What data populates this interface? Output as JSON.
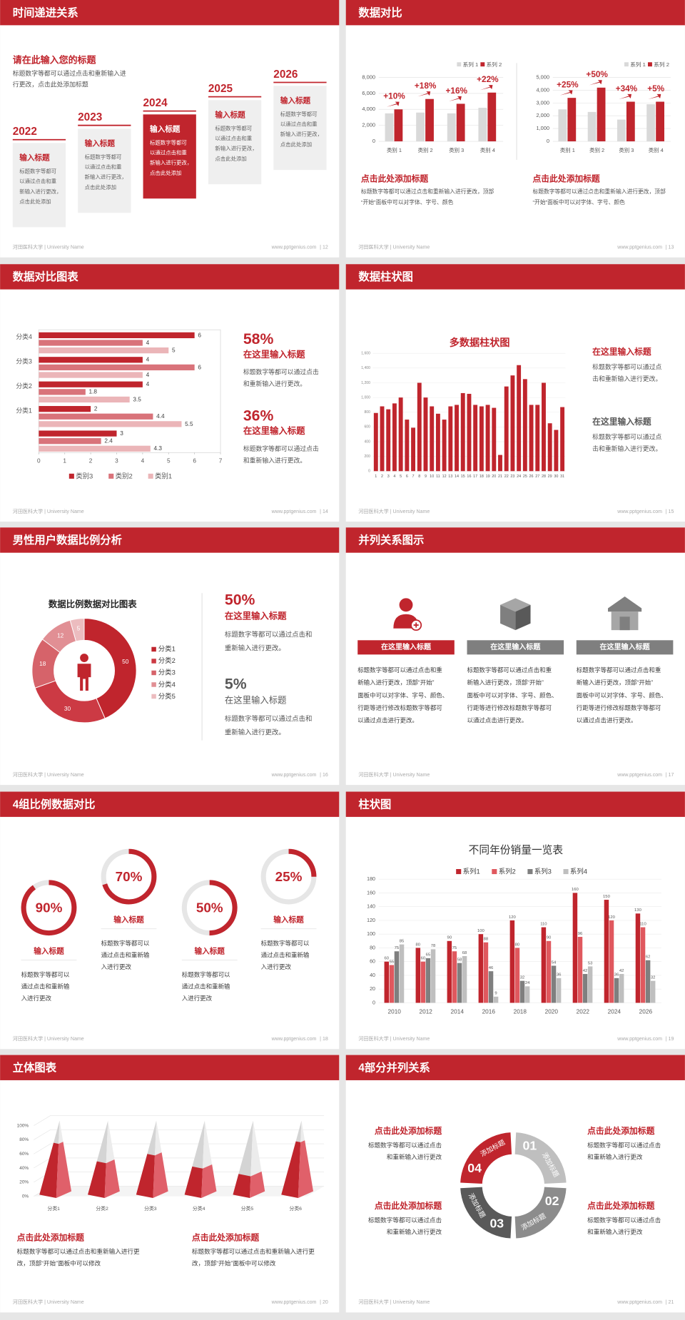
{
  "footer": {
    "school": "河田医科大学 | University Name",
    "site": "www.pptgenius.com"
  },
  "slides": [
    {
      "title": "时间递进关系",
      "page": "| 12",
      "heading": "请在此输入您的标题",
      "intro": [
        "标题数字等都可以通过点击和重新输入进",
        "行更改，点击此处添加标题"
      ],
      "steps": [
        {
          "year": "2022",
          "label": "输入标题",
          "lines": [
            "标题数字等都可",
            "以通过点击和重",
            "新输入进行更改，",
            "点击此处添加"
          ]
        },
        {
          "year": "2023",
          "label": "输入标题",
          "lines": [
            "标题数字等都可",
            "以通过点击和重",
            "新输入进行更改，",
            "点击此处添加"
          ]
        },
        {
          "year": "2024",
          "label": "输入标题",
          "lines": [
            "标题数字等都可",
            "以通过点击和重",
            "新输入进行更改，",
            "点击此处添加"
          ]
        },
        {
          "year": "2025",
          "label": "输入标题",
          "lines": [
            "标题数字等都可",
            "以通过点击和重",
            "新输入进行更改，",
            "点击此处添加"
          ]
        },
        {
          "year": "2026",
          "label": "输入标题",
          "lines": [
            "标题数字等都可",
            "以通过点击和重",
            "新输入进行更改，",
            "点击此处添加"
          ]
        }
      ]
    },
    {
      "title": "数据对比",
      "page": "| 13",
      "charts": [
        {
          "type": "bar",
          "categories": [
            "类别 1",
            "类别 2",
            "类别 3",
            "类别 4"
          ],
          "ylim": [
            0,
            8000
          ],
          "yticks": [
            0,
            {
              "value": 2000,
              "label": "2,000"
            },
            {
              "value": 4000,
              "label": "4,000"
            },
            {
              "value": 6000,
              "label": "6,000"
            },
            {
              "value": 8000,
              "label": "8,000"
            }
          ],
          "series": [
            {
              "name": "系列 1",
              "color": "#d9d9d9",
              "values": [
                3500,
                3600,
                3500,
                4200
              ]
            },
            {
              "name": "系列 2",
              "color": "#c0252d",
              "values": [
                4000,
                5300,
                4700,
                6100
              ]
            }
          ],
          "annotations": [
            "+10%",
            "+18%",
            "+16%",
            "+22%"
          ]
        },
        {
          "type": "bar",
          "categories": [
            "类别 1",
            "类别 2",
            "类别 3",
            "类别 4"
          ],
          "ylim": [
            0,
            5000
          ],
          "yticks": [
            0,
            {
              "value": 1000,
              "label": "1,000"
            },
            {
              "value": 2000,
              "label": "2,000"
            },
            {
              "value": 3000,
              "label": "3,000"
            },
            {
              "value": 4000,
              "label": "4,000"
            },
            {
              "value": 5000,
              "label": "5,000"
            }
          ],
          "series": [
            {
              "name": "系列 1",
              "color": "#d9d9d9",
              "values": [
                2500,
                2300,
                1700,
                2900
              ]
            },
            {
              "name": "系列 2",
              "color": "#c0252d",
              "values": [
                3400,
                4200,
                3100,
                3100
              ]
            }
          ],
          "annotations": [
            "+25%",
            "+50%",
            "+34%",
            "+5%"
          ]
        }
      ],
      "captions": [
        {
          "title": "点击此处添加标题",
          "lines": [
            "标题数字等都可以通过点击和重新输入进行更改，顶部",
            "“开始”面板中可以对字体、字号、颜色"
          ]
        },
        {
          "title": "点击此处添加标题",
          "lines": [
            "标题数字等都可以通过点击和重新输入进行更改，顶部",
            "“开始”面板中可以对字体、字号、颜色"
          ]
        }
      ]
    },
    {
      "title": "数据对比图表",
      "page": "| 14",
      "chart": {
        "type": "hbar",
        "categories": [
          null,
          "分类1",
          "分类2",
          "分类3",
          "分类4"
        ],
        "xlim": [
          0,
          7
        ],
        "xticks": [
          0,
          1,
          2,
          3,
          4,
          5,
          6,
          7
        ],
        "series": [
          {
            "name": "类别3",
            "color": "#c0252d",
            "values": [
              3,
              2,
              4,
              4,
              6
            ]
          },
          {
            "name": "类别2",
            "color": "#d9737a",
            "values": [
              2.4,
              4.4,
              1.8,
              6,
              4
            ]
          },
          {
            "name": "类别1",
            "color": "#ebb5b8",
            "values": [
              4.3,
              5.5,
              3.5,
              4,
              5
            ]
          }
        ]
      },
      "blocks": [
        {
          "pct": "58%",
          "title": "在这里输入标题",
          "lines": [
            "标题数字等都可以通过点击",
            "和重新输入进行更改。"
          ]
        },
        {
          "pct": "36%",
          "title": "在这里输入标题",
          "lines": [
            "标题数字等都可以通过点击",
            "和重新输入进行更改。"
          ]
        }
      ]
    },
    {
      "title": "数据柱状图",
      "page": "| 15",
      "chart": {
        "type": "bar",
        "title": "多数据柱状图",
        "color": "#c0252d",
        "categories": [
          1,
          2,
          3,
          4,
          5,
          6,
          7,
          8,
          9,
          10,
          11,
          12,
          13,
          14,
          15,
          16,
          17,
          18,
          19,
          20,
          21,
          22,
          23,
          24,
          25,
          26,
          27,
          28,
          29,
          30,
          31
        ],
        "values": [
          790,
          880,
          840,
          920,
          1000,
          700,
          590,
          1200,
          1000,
          880,
          780,
          700,
          880,
          900,
          1060,
          1050,
          900,
          880,
          900,
          860,
          220,
          1150,
          1300,
          1440,
          1250,
          900,
          900,
          1200,
          650,
          560,
          870
        ],
        "ylim": [
          0,
          1600
        ],
        "yticks": [
          0,
          200,
          400,
          600,
          800,
          {
            "value": 1000,
            "label": "1,000"
          },
          {
            "value": 1200,
            "label": "1,200"
          },
          {
            "value": 1400,
            "label": "1,400"
          },
          {
            "value": 1600,
            "label": "1,600"
          }
        ]
      },
      "blocks": [
        {
          "title": "在这里输入标题",
          "lines": [
            "标题数字等都可以通过点",
            "击和重新输入进行更改。"
          ]
        },
        {
          "title": "在这里输入标题",
          "lines": [
            "标题数字等都可以通过点",
            "击和重新输入进行更改。"
          ]
        }
      ]
    },
    {
      "title": "男性用户数据比例分析",
      "page": "| 16",
      "chart": {
        "type": "donut",
        "title": "数据比例数据对比图表",
        "categories": [
          "分类1",
          "分类2",
          "分类3",
          "分类4",
          "分类5"
        ],
        "values": [
          50,
          30,
          18,
          12,
          5
        ],
        "colors": [
          "#c0252d",
          "#cc3a44",
          "#d6636a",
          "#e18f94",
          "#ecbcbf"
        ]
      },
      "blocks": [
        {
          "pct": "50%",
          "title": "在这里输入标题",
          "lines": [
            "标题数字等都可以通过点击和",
            "重新输入进行更改。"
          ]
        },
        {
          "pct": "5%",
          "title": "在这里输入标题",
          "lines": [
            "标题数字等都可以通过点击和",
            "重新输入进行更改。"
          ]
        }
      ]
    },
    {
      "title": "并列关系图示",
      "page": "| 17",
      "items": [
        {
          "button": "在这里输入标题",
          "lines": [
            "标题数字等都可以通过点击和重",
            "新输入进行更改，顶部“开始”",
            "面板中可以对字体、字号、颜色、",
            "行距等进行修改标题数字等都可",
            "以通过点击进行更改。"
          ]
        },
        {
          "button": "在这里输入标题",
          "lines": [
            "标题数字等都可以通过点击和重",
            "新输入进行更改，顶部“开始”",
            "面板中可以对字体、字号、颜色、",
            "行距等进行修改标题数字等都可",
            "以通过点击进行更改。"
          ]
        },
        {
          "button": "在这里输入标题",
          "lines": [
            "标题数字等都可以通过点击和重",
            "新输入进行更改，顶部“开始”",
            "面板中可以对字体、字号、颜色、",
            "行距等进行修改标题数字等都可",
            "以通过点击进行更改。"
          ]
        }
      ]
    },
    {
      "title": "4组比例数据对比",
      "page": "| 18",
      "rings": [
        {
          "value": 90,
          "label": "90%",
          "title": "输入标题",
          "lines": [
            "标题数字等都可以",
            "通过点击和重新输",
            "入进行更改"
          ]
        },
        {
          "value": 70,
          "label": "70%",
          "title": "输入标题",
          "lines": [
            "标题数字等都可以",
            "通过点击和重新输",
            "入进行更改"
          ]
        },
        {
          "value": 50,
          "label": "50%",
          "title": "输入标题",
          "lines": [
            "标题数字等都可以",
            "通过点击和重新输",
            "入进行更改"
          ]
        },
        {
          "value": 25,
          "label": "25%",
          "title": "输入标题",
          "lines": [
            "标题数字等都可以",
            "通过点击和重新输",
            "入进行更改"
          ]
        }
      ]
    },
    {
      "title": "柱状图",
      "page": "| 19",
      "chart": {
        "type": "bar",
        "title": "不同年份销量一览表",
        "categories": [
          "2010",
          "2012",
          "2014",
          "2016",
          "2018",
          "2020",
          "2022",
          "2024",
          "2026"
        ],
        "ylim": [
          0,
          180
        ],
        "yticks": [
          0,
          20,
          40,
          60,
          80,
          100,
          120,
          140,
          160,
          180
        ],
        "series": [
          {
            "name": "系列1",
            "color": "#c0252d",
            "values": [
              60,
              80,
              90,
              100,
              120,
              110,
              160,
              150,
              130
            ]
          },
          {
            "name": "系列2",
            "color": "#e0585e",
            "values": [
              55,
              60,
              75,
              88,
              80,
              90,
              96,
              120,
              110
            ]
          },
          {
            "name": "系列3",
            "color": "#7f7f7f",
            "values": [
              75,
              65,
              58,
              46,
              32,
              54,
              42,
              36,
              62
            ]
          },
          {
            "name": "系列4",
            "color": "#bfbfbf",
            "values": [
              85,
              78,
              68,
              9,
              24,
              36,
              53,
              42,
              32
            ]
          }
        ]
      }
    },
    {
      "title": "立体图表",
      "page": "| 20",
      "chart": {
        "type": "pyramid",
        "color": "#c0252d",
        "categories": [
          "分类1",
          "分类2",
          "分类3",
          "分类4",
          "分类5",
          "分类6"
        ],
        "values": [
          70,
          45,
          55,
          38,
          28,
          72
        ],
        "ylim": [
          0,
          100
        ],
        "yticks": [
          {
            "value": 0,
            "label": "0%"
          },
          {
            "value": 20,
            "label": "20%"
          },
          {
            "value": 40,
            "label": "40%"
          },
          {
            "value": 60,
            "label": "60%"
          },
          {
            "value": 80,
            "label": "80%"
          },
          {
            "value": 100,
            "label": "100%"
          }
        ]
      },
      "captions": [
        {
          "title": "点击此处添加标题",
          "lines": [
            "标题数字等都可以通过点击和重新输入进行更",
            "改，顶部“开始”面板中可以修改"
          ]
        },
        {
          "title": "点击此处添加标题",
          "lines": [
            "标题数字等都可以通过点击和重新输入进行更",
            "改，顶部“开始”面板中可以修改"
          ]
        }
      ]
    },
    {
      "title": "4部分并列关系",
      "page": "| 21",
      "parts": [
        {
          "number": "01",
          "label": "添加标题"
        },
        {
          "number": "02",
          "label": "添加标题"
        },
        {
          "number": "03",
          "label": "添加标题"
        },
        {
          "number": "04",
          "label": "添加标题"
        }
      ],
      "notes": [
        {
          "title": "点击此处添加标题",
          "lines": [
            "标题数字等都可以通过点击",
            "和重新输入进行更改"
          ]
        },
        {
          "title": "点击此处添加标题",
          "lines": [
            "标题数字等都可以通过点击",
            "和重新输入进行更改"
          ]
        },
        {
          "title": "点击此处添加标题",
          "lines": [
            "标题数字等都可以通过点击",
            "和重新输入进行更改"
          ]
        },
        {
          "title": "点击此处添加标题",
          "lines": [
            "标题数字等都可以通过点击",
            "和重新输入进行更改"
          ]
        }
      ]
    }
  ]
}
